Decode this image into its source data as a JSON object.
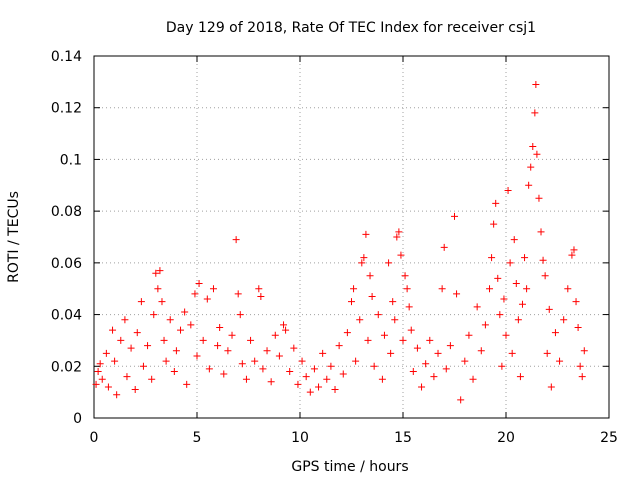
{
  "chart_data": {
    "type": "scatter",
    "title": "Day 129 of 2018, Rate Of TEC Index for receiver csj1",
    "xlabel": "GPS time / hours",
    "ylabel": "ROTI / TECUs",
    "xlim": [
      0,
      25
    ],
    "ylim": [
      0,
      0.14
    ],
    "xticks": [
      0,
      5,
      10,
      15,
      20,
      25
    ],
    "xtick_labels": [
      "0",
      "5",
      "10",
      "15",
      "20",
      "25"
    ],
    "yticks": [
      0,
      0.02,
      0.04,
      0.06,
      0.08,
      0.1,
      0.12,
      0.14
    ],
    "ytick_labels": [
      "0",
      "0.02",
      "0.04",
      "0.06",
      "0.08",
      "0.1",
      "0.12",
      "0.14"
    ],
    "grid": true,
    "marker": "+",
    "color": "#ff0000",
    "x_range_of_data": [
      0,
      23.8
    ],
    "series": [
      {
        "name": "ROTI",
        "points": [
          [
            0.1,
            0.013
          ],
          [
            0.2,
            0.018
          ],
          [
            0.3,
            0.021
          ],
          [
            0.4,
            0.015
          ],
          [
            0.6,
            0.025
          ],
          [
            0.7,
            0.012
          ],
          [
            0.9,
            0.034
          ],
          [
            1.0,
            0.022
          ],
          [
            1.1,
            0.009
          ],
          [
            1.3,
            0.03
          ],
          [
            1.5,
            0.038
          ],
          [
            1.6,
            0.016
          ],
          [
            1.8,
            0.027
          ],
          [
            2.0,
            0.011
          ],
          [
            2.1,
            0.033
          ],
          [
            2.3,
            0.045
          ],
          [
            2.4,
            0.02
          ],
          [
            2.6,
            0.028
          ],
          [
            2.8,
            0.015
          ],
          [
            2.9,
            0.04
          ],
          [
            3.0,
            0.056
          ],
          [
            3.1,
            0.05
          ],
          [
            3.2,
            0.057
          ],
          [
            3.3,
            0.045
          ],
          [
            3.4,
            0.03
          ],
          [
            3.5,
            0.022
          ],
          [
            3.7,
            0.038
          ],
          [
            3.9,
            0.018
          ],
          [
            4.0,
            0.026
          ],
          [
            4.2,
            0.034
          ],
          [
            4.4,
            0.041
          ],
          [
            4.5,
            0.013
          ],
          [
            4.7,
            0.036
          ],
          [
            4.9,
            0.048
          ],
          [
            5.0,
            0.024
          ],
          [
            5.1,
            0.052
          ],
          [
            5.3,
            0.03
          ],
          [
            5.5,
            0.046
          ],
          [
            5.6,
            0.019
          ],
          [
            5.8,
            0.05
          ],
          [
            6.0,
            0.028
          ],
          [
            6.1,
            0.035
          ],
          [
            6.3,
            0.017
          ],
          [
            6.5,
            0.026
          ],
          [
            6.7,
            0.032
          ],
          [
            6.9,
            0.069
          ],
          [
            7.0,
            0.048
          ],
          [
            7.1,
            0.04
          ],
          [
            7.2,
            0.021
          ],
          [
            7.4,
            0.015
          ],
          [
            7.6,
            0.03
          ],
          [
            7.8,
            0.022
          ],
          [
            8.0,
            0.05
          ],
          [
            8.1,
            0.047
          ],
          [
            8.2,
            0.019
          ],
          [
            8.4,
            0.026
          ],
          [
            8.6,
            0.014
          ],
          [
            8.8,
            0.032
          ],
          [
            9.0,
            0.024
          ],
          [
            9.2,
            0.036
          ],
          [
            9.3,
            0.034
          ],
          [
            9.5,
            0.018
          ],
          [
            9.7,
            0.027
          ],
          [
            9.9,
            0.013
          ],
          [
            10.1,
            0.022
          ],
          [
            10.3,
            0.016
          ],
          [
            10.5,
            0.01
          ],
          [
            10.7,
            0.019
          ],
          [
            10.9,
            0.012
          ],
          [
            11.1,
            0.025
          ],
          [
            11.3,
            0.015
          ],
          [
            11.5,
            0.02
          ],
          [
            11.7,
            0.011
          ],
          [
            11.9,
            0.028
          ],
          [
            12.1,
            0.017
          ],
          [
            12.3,
            0.033
          ],
          [
            12.5,
            0.045
          ],
          [
            12.6,
            0.05
          ],
          [
            12.7,
            0.022
          ],
          [
            12.9,
            0.038
          ],
          [
            13.0,
            0.06
          ],
          [
            13.1,
            0.062
          ],
          [
            13.2,
            0.071
          ],
          [
            13.3,
            0.03
          ],
          [
            13.4,
            0.055
          ],
          [
            13.5,
            0.047
          ],
          [
            13.6,
            0.02
          ],
          [
            13.8,
            0.04
          ],
          [
            14.0,
            0.015
          ],
          [
            14.1,
            0.032
          ],
          [
            14.3,
            0.06
          ],
          [
            14.4,
            0.025
          ],
          [
            14.5,
            0.045
          ],
          [
            14.6,
            0.038
          ],
          [
            14.7,
            0.07
          ],
          [
            14.8,
            0.072
          ],
          [
            14.9,
            0.063
          ],
          [
            15.0,
            0.03
          ],
          [
            15.1,
            0.055
          ],
          [
            15.2,
            0.05
          ],
          [
            15.3,
            0.043
          ],
          [
            15.4,
            0.034
          ],
          [
            15.5,
            0.018
          ],
          [
            15.7,
            0.027
          ],
          [
            15.9,
            0.012
          ],
          [
            16.1,
            0.021
          ],
          [
            16.3,
            0.03
          ],
          [
            16.5,
            0.016
          ],
          [
            16.7,
            0.025
          ],
          [
            16.9,
            0.05
          ],
          [
            17.0,
            0.066
          ],
          [
            17.1,
            0.019
          ],
          [
            17.3,
            0.028
          ],
          [
            17.5,
            0.078
          ],
          [
            17.6,
            0.048
          ],
          [
            17.8,
            0.007
          ],
          [
            18.0,
            0.022
          ],
          [
            18.2,
            0.032
          ],
          [
            18.4,
            0.015
          ],
          [
            18.6,
            0.043
          ],
          [
            18.8,
            0.026
          ],
          [
            19.0,
            0.036
          ],
          [
            19.2,
            0.05
          ],
          [
            19.3,
            0.062
          ],
          [
            19.4,
            0.075
          ],
          [
            19.5,
            0.083
          ],
          [
            19.6,
            0.054
          ],
          [
            19.7,
            0.04
          ],
          [
            19.8,
            0.02
          ],
          [
            19.9,
            0.046
          ],
          [
            20.0,
            0.032
          ],
          [
            20.1,
            0.088
          ],
          [
            20.2,
            0.06
          ],
          [
            20.3,
            0.025
          ],
          [
            20.4,
            0.069
          ],
          [
            20.5,
            0.052
          ],
          [
            20.6,
            0.038
          ],
          [
            20.7,
            0.016
          ],
          [
            20.8,
            0.044
          ],
          [
            20.9,
            0.062
          ],
          [
            21.0,
            0.05
          ],
          [
            21.1,
            0.09
          ],
          [
            21.2,
            0.097
          ],
          [
            21.3,
            0.105
          ],
          [
            21.4,
            0.118
          ],
          [
            21.45,
            0.129
          ],
          [
            21.5,
            0.102
          ],
          [
            21.6,
            0.085
          ],
          [
            21.7,
            0.072
          ],
          [
            21.8,
            0.061
          ],
          [
            21.9,
            0.055
          ],
          [
            22.0,
            0.025
          ],
          [
            22.1,
            0.042
          ],
          [
            22.2,
            0.012
          ],
          [
            22.4,
            0.033
          ],
          [
            22.6,
            0.022
          ],
          [
            22.8,
            0.038
          ],
          [
            23.0,
            0.05
          ],
          [
            23.2,
            0.063
          ],
          [
            23.3,
            0.065
          ],
          [
            23.4,
            0.045
          ],
          [
            23.5,
            0.035
          ],
          [
            23.6,
            0.02
          ],
          [
            23.7,
            0.016
          ],
          [
            23.8,
            0.026
          ]
        ]
      }
    ]
  }
}
